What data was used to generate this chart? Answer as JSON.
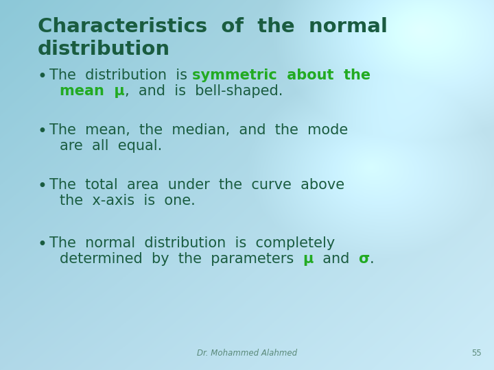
{
  "title_line1": "Characteristics  of  the  normal",
  "title_line2": "distribution",
  "title_color": "#1a5c40",
  "title_fontsize": 21,
  "bullet_color": "#1a5c40",
  "highlight_color": "#22aa22",
  "bullet_fontsize": 15,
  "footer_text": "Dr. Mohammed Alahmed",
  "footer_page": "55",
  "footer_color": "#5a8a7a",
  "footer_fontsize": 8.5,
  "bg_color_tl": "#8cc8d8",
  "bg_color_tr": "#b8dce8",
  "bg_color_bl": "#c0e0ec",
  "bg_color_br": "#d8eef8"
}
